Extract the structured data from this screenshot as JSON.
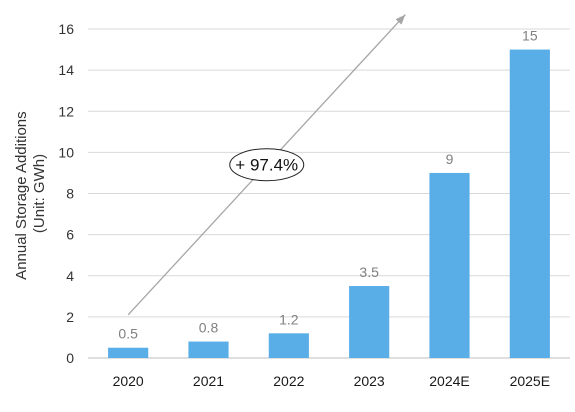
{
  "chart_data": {
    "type": "bar",
    "categories": [
      "2020",
      "2021",
      "2022",
      "2023",
      "2024E",
      "2025E"
    ],
    "values": [
      0.5,
      0.8,
      1.2,
      3.5,
      9,
      15
    ],
    "data_labels": [
      "0.5",
      "0.8",
      "1.2",
      "3.5",
      "9",
      "15"
    ],
    "ylabel_lines": [
      "Annual Storage Additions",
      "(Unit: GWh)"
    ],
    "ylim": [
      0,
      16
    ],
    "yticks": [
      0,
      2,
      4,
      6,
      8,
      10,
      12,
      14,
      16
    ],
    "grid": true,
    "bar_color": "#5aaee8",
    "annotation": "+ 97.4%"
  }
}
